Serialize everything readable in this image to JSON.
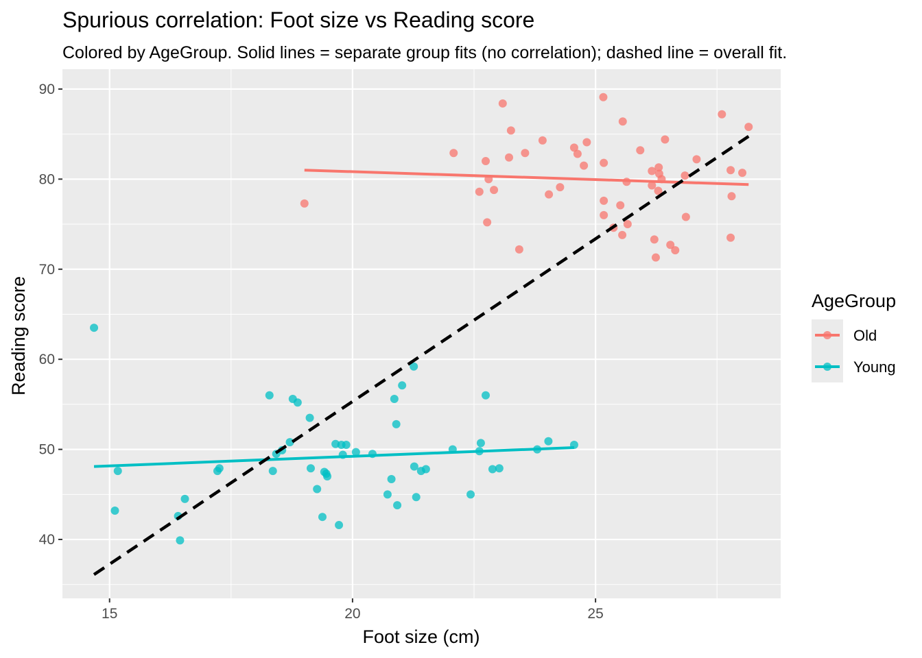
{
  "chart_data": {
    "type": "scatter",
    "title": "Spurious correlation: Foot size vs Reading score",
    "subtitle": "Colored by AgeGroup. Solid lines = separate group fits (no correlation); dashed line = overall fit.",
    "xlabel": "Foot size (cm)",
    "ylabel": "Reading score",
    "xlim": [
      14.03,
      28.81
    ],
    "ylim": [
      33.46,
      92.2
    ],
    "xticks": [
      15,
      20,
      25
    ],
    "yticks": [
      40,
      50,
      60,
      70,
      80,
      90
    ],
    "xminor": [
      17.5,
      22.5,
      27.5
    ],
    "yminor": [
      35,
      45,
      55,
      65,
      75,
      85
    ],
    "grid": true,
    "legend": {
      "title": "AgeGroup",
      "placement": "right",
      "entries": [
        "Old",
        "Young"
      ]
    },
    "series": [
      {
        "name": "Old",
        "color": "#F8766D",
        "points": [
          [
            19.01,
            77.3
          ],
          [
            22.08,
            82.9
          ],
          [
            22.74,
            82.0
          ],
          [
            22.61,
            78.6
          ],
          [
            22.8,
            80.0
          ],
          [
            22.91,
            78.8
          ],
          [
            22.77,
            75.2
          ],
          [
            23.09,
            88.4
          ],
          [
            23.26,
            85.4
          ],
          [
            23.22,
            82.4
          ],
          [
            23.55,
            82.9
          ],
          [
            23.43,
            72.2
          ],
          [
            23.91,
            84.3
          ],
          [
            24.04,
            78.3
          ],
          [
            24.27,
            79.1
          ],
          [
            24.56,
            83.5
          ],
          [
            24.63,
            82.8
          ],
          [
            24.82,
            84.1
          ],
          [
            24.76,
            81.5
          ],
          [
            25.16,
            89.1
          ],
          [
            25.17,
            81.8
          ],
          [
            25.17,
            77.6
          ],
          [
            25.17,
            76.0
          ],
          [
            25.37,
            74.6
          ],
          [
            25.56,
            86.4
          ],
          [
            25.51,
            77.1
          ],
          [
            25.55,
            73.8
          ],
          [
            25.64,
            79.7
          ],
          [
            25.66,
            75.0
          ],
          [
            25.92,
            83.2
          ],
          [
            26.16,
            80.9
          ],
          [
            26.16,
            79.3
          ],
          [
            26.21,
            73.3
          ],
          [
            26.24,
            71.3
          ],
          [
            26.3,
            81.3
          ],
          [
            26.31,
            80.6
          ],
          [
            26.36,
            80.0
          ],
          [
            26.29,
            78.7
          ],
          [
            26.43,
            84.4
          ],
          [
            26.54,
            72.7
          ],
          [
            26.64,
            72.1
          ],
          [
            26.84,
            80.4
          ],
          [
            26.86,
            75.8
          ],
          [
            27.08,
            82.2
          ],
          [
            27.6,
            87.2
          ],
          [
            27.78,
            81.0
          ],
          [
            28.02,
            80.7
          ],
          [
            27.8,
            78.1
          ],
          [
            27.78,
            73.5
          ],
          [
            28.15,
            85.8
          ]
        ],
        "fit": [
          [
            19.01,
            81.0
          ],
          [
            28.15,
            79.4
          ]
        ]
      },
      {
        "name": "Young",
        "color": "#00BFC4",
        "points": [
          [
            14.68,
            63.5
          ],
          [
            15.11,
            43.2
          ],
          [
            15.17,
            47.6
          ],
          [
            16.41,
            42.6
          ],
          [
            16.45,
            39.9
          ],
          [
            16.55,
            44.5
          ],
          [
            17.22,
            47.6
          ],
          [
            17.26,
            47.9
          ],
          [
            18.29,
            56.0
          ],
          [
            18.36,
            47.6
          ],
          [
            18.43,
            49.5
          ],
          [
            18.55,
            49.9
          ],
          [
            18.71,
            50.8
          ],
          [
            18.77,
            55.6
          ],
          [
            18.87,
            55.2
          ],
          [
            19.12,
            53.5
          ],
          [
            19.14,
            47.9
          ],
          [
            19.27,
            45.6
          ],
          [
            19.38,
            42.5
          ],
          [
            19.42,
            47.5
          ],
          [
            19.46,
            47.3
          ],
          [
            19.48,
            47.0
          ],
          [
            19.65,
            50.6
          ],
          [
            19.72,
            41.6
          ],
          [
            19.77,
            50.5
          ],
          [
            19.87,
            50.5
          ],
          [
            19.8,
            49.4
          ],
          [
            20.07,
            49.7
          ],
          [
            20.41,
            49.5
          ],
          [
            20.72,
            45.0
          ],
          [
            20.8,
            46.7
          ],
          [
            20.86,
            55.6
          ],
          [
            20.9,
            52.8
          ],
          [
            20.92,
            43.8
          ],
          [
            21.02,
            57.1
          ],
          [
            21.26,
            59.2
          ],
          [
            21.27,
            48.1
          ],
          [
            21.31,
            44.7
          ],
          [
            21.41,
            47.6
          ],
          [
            21.51,
            47.8
          ],
          [
            22.06,
            50.0
          ],
          [
            22.43,
            45.0
          ],
          [
            22.61,
            49.8
          ],
          [
            22.64,
            50.7
          ],
          [
            22.74,
            56.0
          ],
          [
            22.88,
            47.8
          ],
          [
            23.02,
            47.9
          ],
          [
            23.8,
            50.0
          ],
          [
            24.03,
            50.9
          ],
          [
            24.56,
            50.5
          ]
        ],
        "fit": [
          [
            14.68,
            48.1
          ],
          [
            24.56,
            50.2
          ]
        ]
      }
    ],
    "overall_fit": {
      "style": "dashed",
      "color": "#000000",
      "line": [
        [
          14.68,
          36.1
        ],
        [
          28.15,
          84.75
        ]
      ]
    }
  }
}
